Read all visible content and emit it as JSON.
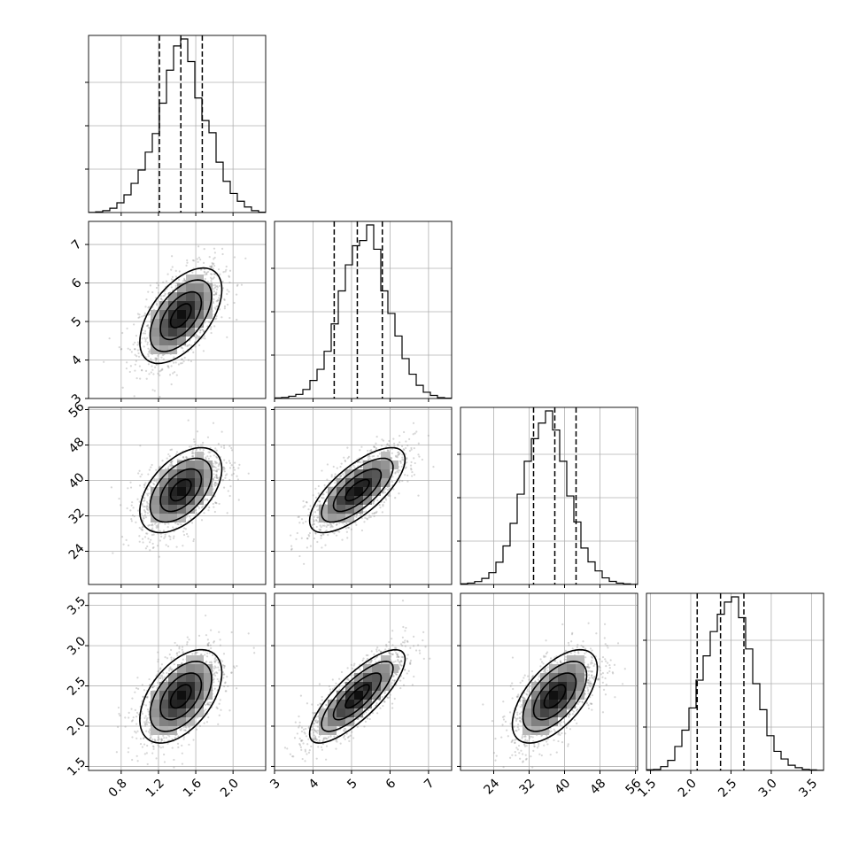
{
  "chart_data": {
    "type": "corner",
    "title": "",
    "grid": true,
    "parameters": [
      {
        "label": "",
        "range": [
          0.45,
          2.35
        ],
        "mean": 1.44,
        "std": 0.22,
        "quantiles": [
          1.21,
          1.44,
          1.67
        ],
        "ticks": [
          0.8,
          1.2,
          1.6,
          2.0
        ],
        "tick_labels": [
          "0.8",
          "1.2",
          "1.6",
          "2.0"
        ]
      },
      {
        "label": "",
        "range": [
          3.0,
          7.6
        ],
        "mean": 5.15,
        "std": 0.62,
        "quantiles": [
          4.55,
          5.15,
          5.8
        ],
        "ticks": [
          3,
          4,
          5,
          6,
          7
        ],
        "tick_labels": [
          "3",
          "4",
          "5",
          "6",
          "7"
        ]
      },
      {
        "label": "",
        "range": [
          16.5,
          56.5
        ],
        "mean": 37.8,
        "std": 4.8,
        "quantiles": [
          33.0,
          37.8,
          42.6
        ],
        "ticks": [
          24,
          32,
          40,
          48,
          56
        ],
        "tick_labels": [
          "24",
          "32",
          "40",
          "48",
          "56"
        ]
      },
      {
        "label": "",
        "range": [
          1.45,
          3.65
        ],
        "mean": 2.37,
        "std": 0.29,
        "quantiles": [
          2.08,
          2.37,
          2.66
        ],
        "ticks": [
          1.5,
          2.0,
          2.5,
          3.0,
          3.5
        ],
        "tick_labels": [
          "1.5",
          "2.0",
          "2.5",
          "3.0",
          "3.5"
        ]
      }
    ],
    "correlations": [
      [
        0,
        1,
        0.55
      ],
      [
        0,
        2,
        0.5
      ],
      [
        1,
        2,
        0.72
      ],
      [
        0,
        3,
        0.5
      ],
      [
        1,
        3,
        0.8
      ],
      [
        2,
        3,
        0.6
      ]
    ],
    "histograms": [
      [
        0.001,
        0.004,
        0.011,
        0.025,
        0.056,
        0.102,
        0.168,
        0.245,
        0.348,
        0.455,
        0.63,
        0.82,
        0.96,
        1.0,
        0.87,
        0.66,
        0.53,
        0.46,
        0.29,
        0.18,
        0.11,
        0.065,
        0.032,
        0.011,
        0.002
      ],
      [
        0.003,
        0.006,
        0.013,
        0.024,
        0.052,
        0.104,
        0.168,
        0.272,
        0.43,
        0.62,
        0.77,
        0.88,
        0.91,
        1.0,
        0.86,
        0.62,
        0.49,
        0.36,
        0.23,
        0.14,
        0.076,
        0.036,
        0.018,
        0.005,
        0.002
      ],
      [
        0.004,
        0.008,
        0.017,
        0.035,
        0.068,
        0.128,
        0.222,
        0.352,
        0.52,
        0.71,
        0.84,
        0.93,
        1.0,
        0.89,
        0.71,
        0.51,
        0.36,
        0.21,
        0.13,
        0.078,
        0.038,
        0.018,
        0.008,
        0.003,
        0.001
      ],
      [
        0.004,
        0.006,
        0.022,
        0.058,
        0.138,
        0.232,
        0.36,
        0.52,
        0.66,
        0.8,
        0.9,
        0.97,
        1.0,
        0.88,
        0.7,
        0.5,
        0.35,
        0.2,
        0.11,
        0.066,
        0.03,
        0.016,
        0.006,
        0.003,
        0.001
      ]
    ],
    "contour_sigma_levels": [
      0.5,
      1.0,
      1.5,
      2.0
    ]
  }
}
